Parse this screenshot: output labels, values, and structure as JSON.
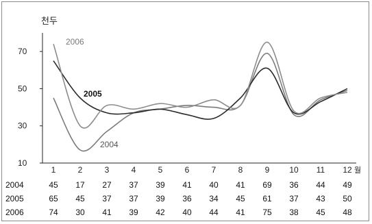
{
  "chart_data": {
    "type": "line",
    "ylabel": "천두",
    "xunit": "월",
    "ylim": [
      10,
      80
    ],
    "yticks": [
      10,
      30,
      50,
      70
    ],
    "categories": [
      "1",
      "2",
      "3",
      "4",
      "5",
      "6",
      "7",
      "8",
      "9",
      "10",
      "11",
      "12"
    ],
    "series": [
      {
        "name": "2004",
        "values": [
          45,
          17,
          27,
          37,
          39,
          41,
          40,
          41,
          69,
          36,
          44,
          49
        ],
        "color": "#7a7a7a"
      },
      {
        "name": "2005",
        "values": [
          65,
          45,
          37,
          37,
          39,
          36,
          34,
          45,
          61,
          37,
          43,
          50
        ],
        "color": "#2b2b2b"
      },
      {
        "name": "2006",
        "values": [
          74,
          30,
          41,
          39,
          42,
          40,
          44,
          41,
          75,
          38,
          45,
          48
        ],
        "color": "#8c8c8c"
      }
    ],
    "table_rows": [
      {
        "label": "2004",
        "values": [
          "45",
          "17",
          "27",
          "37",
          "39",
          "41",
          "40",
          "41",
          "69",
          "36",
          "44",
          "49"
        ]
      },
      {
        "label": "2005",
        "values": [
          "65",
          "45",
          "37",
          "37",
          "39",
          "36",
          "34",
          "45",
          "61",
          "37",
          "43",
          "50"
        ]
      },
      {
        "label": "2006",
        "values": [
          "74",
          "30",
          "41",
          "39",
          "42",
          "40",
          "44",
          "41",
          "75",
          "38",
          "45",
          "48"
        ]
      }
    ],
    "grid": false
  }
}
